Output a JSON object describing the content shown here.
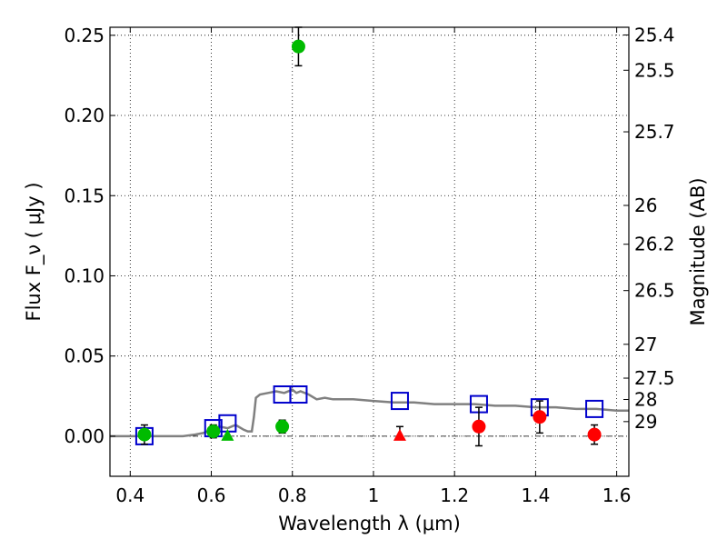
{
  "chart_data": {
    "type": "scatter",
    "xlabel": "Wavelength  λ (μm)",
    "ylabel": "Flux  F_ν  ( μJy )",
    "y2label": "Magnitude (AB)",
    "xlim": [
      0.35,
      1.63
    ],
    "ylim": [
      -0.025,
      0.255
    ],
    "xticks": [
      0.4,
      0.6,
      0.8,
      1.0,
      1.2,
      1.4,
      1.6
    ],
    "xtick_labels": [
      "0.4",
      "0.6",
      "0.8",
      "1",
      "1.2",
      "1.4",
      "1.6"
    ],
    "yticks": [
      0.0,
      0.05,
      0.1,
      0.15,
      0.2,
      0.25
    ],
    "ytick_labels": [
      "0.00",
      "0.05",
      "0.10",
      "0.15",
      "0.20",
      "0.25"
    ],
    "y2ticks": [
      {
        "label": "25.4",
        "flux": 0.2502
      },
      {
        "label": "25.5",
        "flux": 0.2282
      },
      {
        "label": "25.7",
        "flux": 0.1898
      },
      {
        "label": "26",
        "flux": 0.1439
      },
      {
        "label": "26.2",
        "flux": 0.1197
      },
      {
        "label": "26.5",
        "flux": 0.0908
      },
      {
        "label": "27",
        "flux": 0.0573
      },
      {
        "label": "27.5",
        "flux": 0.0362
      },
      {
        "label": "28",
        "flux": 0.0229
      },
      {
        "label": "29",
        "flux": 0.0091
      }
    ],
    "grid": true,
    "colors": {
      "green": "#00bb00",
      "red": "#ff0000",
      "blue": "#0000cc",
      "model": "#808080",
      "errorbar": "#000000"
    },
    "model_sed": {
      "x": [
        0.35,
        0.45,
        0.53,
        0.56,
        0.58,
        0.6,
        0.62,
        0.64,
        0.66,
        0.68,
        0.69,
        0.7,
        0.705,
        0.71,
        0.72,
        0.74,
        0.76,
        0.78,
        0.8,
        0.81,
        0.82,
        0.84,
        0.86,
        0.88,
        0.9,
        0.95,
        1.0,
        1.05,
        1.1,
        1.15,
        1.2,
        1.25,
        1.3,
        1.35,
        1.4,
        1.45,
        1.5,
        1.55,
        1.6,
        1.63
      ],
      "y": [
        0.0,
        0.0,
        0.0,
        0.001,
        0.002,
        0.004,
        0.006,
        0.005,
        0.007,
        0.004,
        0.003,
        0.003,
        0.012,
        0.024,
        0.026,
        0.027,
        0.028,
        0.027,
        0.029,
        0.027,
        0.028,
        0.026,
        0.023,
        0.024,
        0.023,
        0.023,
        0.022,
        0.021,
        0.021,
        0.02,
        0.02,
        0.02,
        0.019,
        0.019,
        0.018,
        0.018,
        0.017,
        0.017,
        0.016,
        0.016
      ]
    },
    "series": [
      {
        "marker": "circle",
        "color": "green",
        "points": [
          {
            "x": 0.435,
            "y": 0.001,
            "yerr": 0.006
          },
          {
            "x": 0.605,
            "y": 0.003,
            "yerr": 0.004
          },
          {
            "x": 0.775,
            "y": 0.006,
            "yerr": 0.004
          },
          {
            "x": 0.815,
            "y": 0.243,
            "yerr": 0.012
          }
        ]
      },
      {
        "marker": "triangle",
        "color": "green",
        "points": [
          {
            "x": 0.64,
            "y": 0.0
          }
        ]
      },
      {
        "marker": "circle",
        "color": "red",
        "points": [
          {
            "x": 1.26,
            "y": 0.006,
            "yerr": 0.012
          },
          {
            "x": 1.41,
            "y": 0.012,
            "yerr": 0.01
          },
          {
            "x": 1.545,
            "y": 0.001,
            "yerr": 0.006
          }
        ]
      },
      {
        "marker": "triangle",
        "color": "red",
        "points": [
          {
            "x": 1.065,
            "y": 0.0,
            "yerr_up": 0.006
          }
        ]
      },
      {
        "marker": "square",
        "color": "blue",
        "points": [
          {
            "x": 0.435,
            "y": 0.0
          },
          {
            "x": 0.605,
            "y": 0.005
          },
          {
            "x": 0.64,
            "y": 0.008
          },
          {
            "x": 0.775,
            "y": 0.026
          },
          {
            "x": 0.815,
            "y": 0.026
          },
          {
            "x": 1.065,
            "y": 0.022
          },
          {
            "x": 1.26,
            "y": 0.02
          },
          {
            "x": 1.41,
            "y": 0.018
          },
          {
            "x": 1.545,
            "y": 0.017
          }
        ]
      }
    ]
  }
}
